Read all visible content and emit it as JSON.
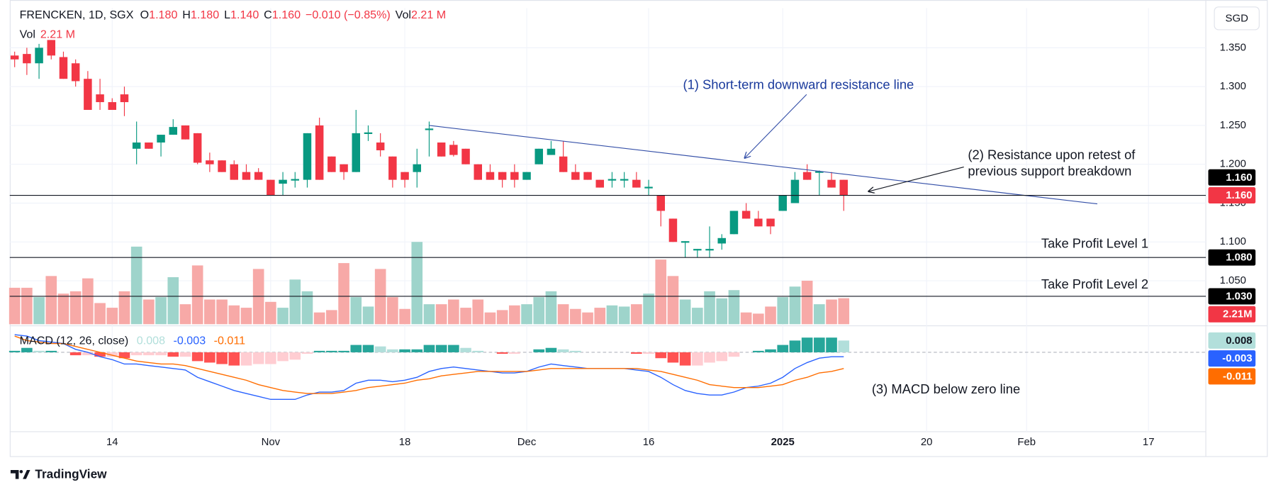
{
  "header": {
    "symbol": "FRENCKEN, 1D, SGX",
    "fields": [
      {
        "label": "O",
        "value": "1.180"
      },
      {
        "label": "H",
        "value": "1.180"
      },
      {
        "label": "L",
        "value": "1.140"
      },
      {
        "label": "C",
        "value": "1.160"
      }
    ],
    "change": "−0.010 (−0.85%)",
    "vol_label": "Vol",
    "vol_value": "2.21 M",
    "volume_legend": {
      "label": "Vol",
      "value": "2.21 M"
    },
    "currency": "SGD",
    "brand": "TradingView"
  },
  "chart_data": {
    "type": "candlestick",
    "xlim": [
      -0.4,
      97.7
    ],
    "xticks": [
      {
        "value": 8,
        "label": "14"
      },
      {
        "value": 21,
        "label": "Nov"
      },
      {
        "value": 32,
        "label": "18"
      },
      {
        "value": 42,
        "label": "Dec"
      },
      {
        "value": 52,
        "label": "16"
      },
      {
        "value": 63,
        "label": "2025"
      },
      {
        "value": 74.8,
        "label": "20"
      },
      {
        "value": 83,
        "label": "Feb"
      },
      {
        "value": 93,
        "label": "17"
      }
    ],
    "ylim": [
      0.992,
      1.401
    ],
    "yticks": [
      {
        "value": 1.05,
        "label": "1.050"
      },
      {
        "value": 1.1,
        "label": "1.100"
      },
      {
        "value": 1.15,
        "label": "1.150"
      },
      {
        "value": 1.2,
        "label": "1.200"
      },
      {
        "value": 1.25,
        "label": "1.250"
      },
      {
        "value": 1.3,
        "label": "1.300"
      },
      {
        "value": 1.35,
        "label": "1.350"
      }
    ],
    "grid": true,
    "up_color": "#089981",
    "down_color": "#f23645",
    "open": [
      1.34,
      1.342,
      1.33,
      1.36,
      1.338,
      1.33,
      1.31,
      1.29,
      1.28,
      1.29,
      1.22,
      1.228,
      1.228,
      1.238,
      1.25,
      1.24,
      1.205,
      1.205,
      1.2,
      1.19,
      1.19,
      1.18,
      1.175,
      1.179,
      1.18,
      1.25,
      1.21,
      1.2,
      1.19,
      1.239,
      1.228,
      1.21,
      1.19,
      1.19,
      1.244,
      1.228,
      1.225,
      1.22,
      1.2,
      1.19,
      1.19,
      1.19,
      1.18,
      1.2,
      1.212,
      1.21,
      1.19,
      1.19,
      1.18,
      1.179,
      1.179,
      1.18,
      1.169,
      1.16,
      1.13,
      1.099,
      1.089,
      1.089,
      1.098,
      1.11,
      1.14,
      1.13,
      1.13,
      1.14,
      1.15,
      1.19,
      1.189,
      1.18,
      1.18
    ],
    "high": [
      1.345,
      1.35,
      1.355,
      1.36,
      1.345,
      1.335,
      1.32,
      1.31,
      1.285,
      1.3,
      1.255,
      1.228,
      1.238,
      1.258,
      1.25,
      1.24,
      1.215,
      1.205,
      1.205,
      1.2,
      1.195,
      1.18,
      1.19,
      1.19,
      1.24,
      1.26,
      1.21,
      1.2,
      1.27,
      1.25,
      1.24,
      1.21,
      1.19,
      1.22,
      1.255,
      1.228,
      1.23,
      1.22,
      1.2,
      1.2,
      1.19,
      1.2,
      1.19,
      1.22,
      1.23,
      1.23,
      1.2,
      1.19,
      1.18,
      1.19,
      1.19,
      1.19,
      1.18,
      1.16,
      1.13,
      1.101,
      1.091,
      1.12,
      1.11,
      1.14,
      1.15,
      1.14,
      1.13,
      1.16,
      1.19,
      1.2,
      1.192,
      1.19,
      1.18
    ],
    "low": [
      1.325,
      1.315,
      1.31,
      1.335,
      1.31,
      1.3,
      1.27,
      1.27,
      1.27,
      1.262,
      1.2,
      1.22,
      1.21,
      1.238,
      1.232,
      1.2,
      1.19,
      1.19,
      1.18,
      1.18,
      1.18,
      1.16,
      1.16,
      1.17,
      1.17,
      1.18,
      1.19,
      1.18,
      1.19,
      1.23,
      1.21,
      1.17,
      1.17,
      1.17,
      1.21,
      1.21,
      1.21,
      1.2,
      1.18,
      1.18,
      1.17,
      1.17,
      1.18,
      1.2,
      1.212,
      1.19,
      1.18,
      1.18,
      1.17,
      1.17,
      1.17,
      1.17,
      1.16,
      1.12,
      1.1,
      1.08,
      1.08,
      1.08,
      1.09,
      1.11,
      1.13,
      1.12,
      1.11,
      1.14,
      1.15,
      1.18,
      1.16,
      1.17,
      1.14
    ],
    "close": [
      1.335,
      1.33,
      1.35,
      1.34,
      1.31,
      1.307,
      1.27,
      1.28,
      1.27,
      1.28,
      1.228,
      1.22,
      1.238,
      1.248,
      1.232,
      1.202,
      1.2,
      1.19,
      1.18,
      1.18,
      1.18,
      1.16,
      1.18,
      1.181,
      1.24,
      1.18,
      1.19,
      1.19,
      1.24,
      1.241,
      1.218,
      1.18,
      1.18,
      1.2,
      1.246,
      1.21,
      1.212,
      1.2,
      1.18,
      1.18,
      1.18,
      1.18,
      1.19,
      1.22,
      1.22,
      1.19,
      1.18,
      1.18,
      1.17,
      1.181,
      1.181,
      1.17,
      1.171,
      1.14,
      1.1,
      1.101,
      1.091,
      1.091,
      1.105,
      1.14,
      1.13,
      1.12,
      1.12,
      1.16,
      1.18,
      1.18,
      1.191,
      1.17,
      1.16
    ],
    "price_label": {
      "value": 1.16,
      "label": "1.160"
    },
    "volume": {
      "values": [
        3.1,
        3.1,
        2.3,
        4.1,
        2.6,
        2.8,
        3.9,
        1.8,
        1.4,
        2.8,
        6.6,
        2.1,
        2.3,
        4.0,
        1.7,
        5.0,
        2.1,
        2.1,
        1.6,
        1.4,
        4.7,
        1.9,
        1.4,
        3.8,
        2.8,
        1.0,
        1.2,
        5.2,
        2.3,
        1.5,
        4.7,
        2.3,
        1.3,
        7.0,
        1.7,
        1.7,
        2.1,
        1.4,
        2.1,
        1.0,
        1.2,
        1.6,
        1.7,
        2.3,
        2.8,
        1.7,
        1.3,
        1.0,
        1.4,
        1.6,
        1.5,
        1.7,
        2.6,
        5.5,
        4.1,
        2.1,
        1.4,
        2.8,
        2.2,
        2.9,
        1.0,
        0.9,
        1.5,
        2.3,
        3.2,
        3.7,
        1.7,
        2.1,
        2.21
      ],
      "up_color": "#9ed4cb",
      "down_color": "#f7a9a7",
      "label": {
        "value": 2.21,
        "label": "2.21M"
      }
    },
    "levels": [
      {
        "value": 1.16,
        "label": "1.160"
      },
      {
        "value": 1.08,
        "label": "1.080"
      },
      {
        "value": 1.03,
        "label": "1.030"
      }
    ],
    "trendline": {
      "x": [
        34,
        88.8
      ],
      "y": [
        1.25,
        1.149
      ],
      "color": "#3550a8"
    },
    "macd": {
      "title": "MACD (12, 26, close)",
      "ylim": [
        -0.054,
        0.018
      ],
      "macd": [
        0.012,
        0.011,
        0.008,
        0.007,
        0.006,
        0.002,
        0.0,
        -0.003,
        -0.005,
        -0.008,
        -0.008,
        -0.009,
        -0.01,
        -0.011,
        -0.012,
        -0.017,
        -0.02,
        -0.023,
        -0.026,
        -0.028,
        -0.03,
        -0.032,
        -0.032,
        -0.032,
        -0.029,
        -0.027,
        -0.027,
        -0.026,
        -0.021,
        -0.019,
        -0.019,
        -0.02,
        -0.019,
        -0.017,
        -0.013,
        -0.011,
        -0.01,
        -0.011,
        -0.012,
        -0.013,
        -0.014,
        -0.014,
        -0.013,
        -0.01,
        -0.008,
        -0.009,
        -0.01,
        -0.011,
        -0.011,
        -0.011,
        -0.011,
        -0.012,
        -0.013,
        -0.017,
        -0.022,
        -0.026,
        -0.028,
        -0.029,
        -0.029,
        -0.027,
        -0.024,
        -0.023,
        -0.021,
        -0.017,
        -0.011,
        -0.007,
        -0.004,
        -0.003,
        -0.003
      ],
      "signal": [
        0.011,
        0.008,
        0.007,
        0.006,
        0.006,
        0.004,
        0.002,
        0,
        -0.002,
        -0.004,
        -0.006,
        -0.007,
        -0.008,
        -0.008,
        -0.009,
        -0.011,
        -0.013,
        -0.015,
        -0.017,
        -0.019,
        -0.022,
        -0.024,
        -0.026,
        -0.027,
        -0.028,
        -0.028,
        -0.028,
        -0.027,
        -0.026,
        -0.024,
        -0.023,
        -0.022,
        -0.021,
        -0.019,
        -0.018,
        -0.016,
        -0.015,
        -0.014,
        -0.013,
        -0.013,
        -0.013,
        -0.013,
        -0.013,
        -0.012,
        -0.011,
        -0.011,
        -0.011,
        -0.011,
        -0.011,
        -0.011,
        -0.011,
        -0.011,
        -0.012,
        -0.013,
        -0.015,
        -0.017,
        -0.019,
        -0.022,
        -0.023,
        -0.024,
        -0.024,
        -0.024,
        -0.023,
        -0.022,
        -0.019,
        -0.017,
        -0.014,
        -0.013,
        -0.011
      ],
      "histogram": [
        0.001,
        0.003,
        0.001,
        0.001,
        0,
        -0.002,
        -0.002,
        -0.003,
        -0.003,
        -0.004,
        -0.002,
        -0.002,
        -0.002,
        -0.003,
        -0.003,
        -0.006,
        -0.007,
        -0.008,
        -0.009,
        -0.009,
        -0.008,
        -0.008,
        -0.006,
        -0.005,
        -0.001,
        0.001,
        0.001,
        0.001,
        0.005,
        0.005,
        0.004,
        0.002,
        0.002,
        0.002,
        0.005,
        0.005,
        0.005,
        0.003,
        0.001,
        0,
        -0.001,
        -0.001,
        0,
        0.002,
        0.003,
        0.002,
        0.001,
        0,
        0,
        0,
        0,
        -0.001,
        -0.001,
        -0.004,
        -0.007,
        -0.009,
        -0.009,
        -0.007,
        -0.006,
        -0.003,
        0,
        0.001,
        0.002,
        0.005,
        0.008,
        0.01,
        0.01,
        0.01,
        0.008
      ],
      "macd_color": "#2962ff",
      "signal_color": "#ff6d00",
      "hist_colors": [
        "#26a69a",
        "#b2dfdb",
        "#ffcdd2",
        "#ff5252"
      ]
    },
    "annotations": [
      "(1) Short-term downward resistance line",
      "(2) Resistance upon retest of",
      "previous support breakdown",
      "Take Profit Level 1",
      "Take Profit Level 2",
      "(3) MACD below zero line"
    ]
  }
}
